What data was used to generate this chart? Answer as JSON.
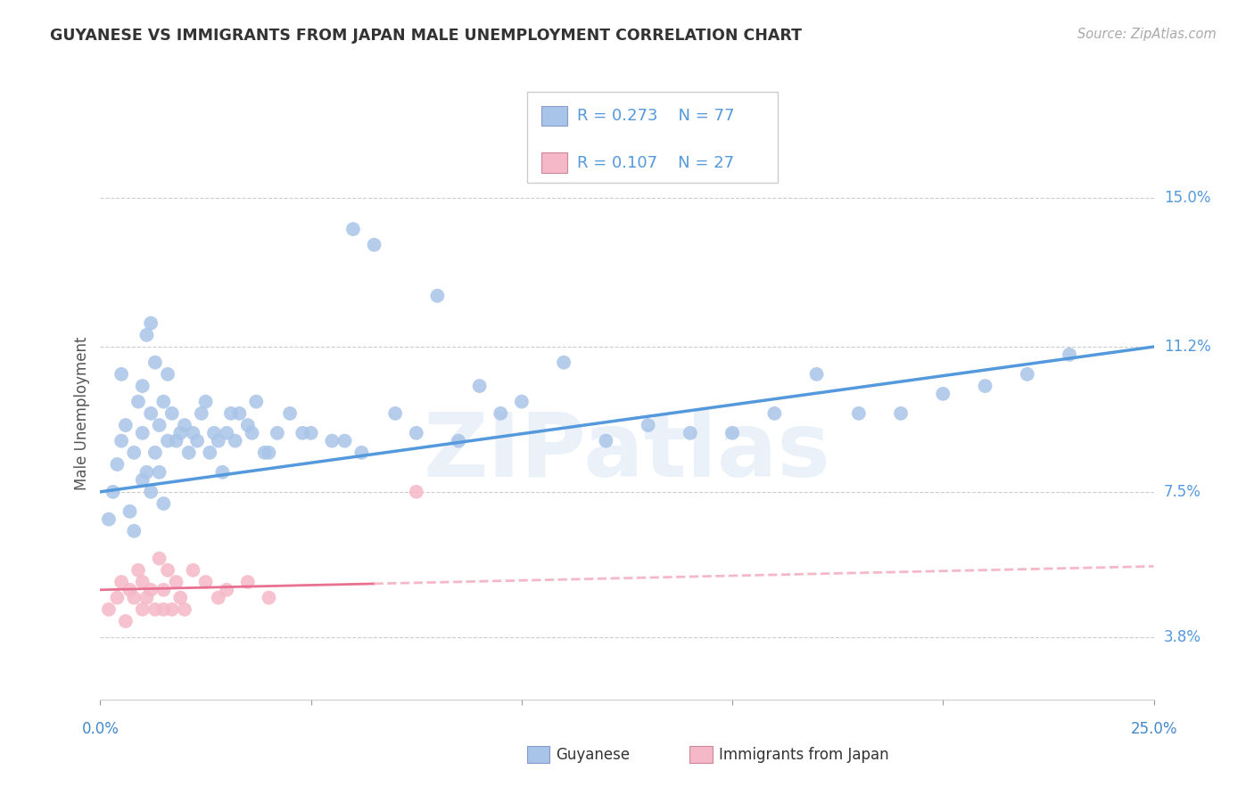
{
  "title": "GUYANESE VS IMMIGRANTS FROM JAPAN MALE UNEMPLOYMENT CORRELATION CHART",
  "source": "Source: ZipAtlas.com",
  "ylabel": "Male Unemployment",
  "ytick_labels": [
    "3.8%",
    "7.5%",
    "11.2%",
    "15.0%"
  ],
  "ytick_values": [
    3.8,
    7.5,
    11.2,
    15.0
  ],
  "xlim": [
    0.0,
    25.0
  ],
  "ylim": [
    2.2,
    16.8
  ],
  "watermark": "ZIPatlas",
  "legend_blue_R": "0.273",
  "legend_blue_N": "77",
  "legend_pink_R": "0.107",
  "legend_pink_N": "27",
  "legend_label_blue": "Guyanese",
  "legend_label_pink": "Immigrants from Japan",
  "blue_scatter_color": "#a8c4e8",
  "pink_scatter_color": "#f5b8c8",
  "line_blue_color": "#5599dd",
  "line_pink_solid_color": "#e87090",
  "line_pink_dashed_color": "#f5b8c8",
  "blue_line_y0": 7.5,
  "blue_line_y1": 11.2,
  "pink_line_y0": 5.0,
  "pink_line_y1": 5.6,
  "pink_solid_end_x": 6.5,
  "guyanese_x": [
    0.2,
    0.3,
    0.4,
    0.5,
    0.5,
    0.6,
    0.7,
    0.8,
    0.8,
    0.9,
    1.0,
    1.0,
    1.0,
    1.1,
    1.1,
    1.2,
    1.2,
    1.2,
    1.3,
    1.3,
    1.4,
    1.4,
    1.5,
    1.5,
    1.6,
    1.6,
    1.7,
    1.8,
    1.9,
    2.0,
    2.1,
    2.2,
    2.3,
    2.4,
    2.5,
    2.6,
    2.7,
    2.8,
    2.9,
    3.0,
    3.1,
    3.2,
    3.3,
    3.5,
    3.7,
    3.9,
    4.2,
    4.5,
    5.0,
    5.5,
    6.0,
    6.5,
    7.0,
    8.0,
    9.0,
    10.0,
    11.0,
    13.0,
    14.0,
    16.0,
    17.0,
    19.0,
    21.0,
    23.0,
    3.6,
    4.0,
    4.8,
    5.8,
    6.2,
    7.5,
    8.5,
    9.5,
    12.0,
    15.0,
    18.0,
    20.0,
    22.0
  ],
  "guyanese_y": [
    6.8,
    7.5,
    8.2,
    10.5,
    8.8,
    9.2,
    7.0,
    8.5,
    6.5,
    9.8,
    10.2,
    9.0,
    7.8,
    11.5,
    8.0,
    11.8,
    9.5,
    7.5,
    10.8,
    8.5,
    9.2,
    8.0,
    9.8,
    7.2,
    10.5,
    8.8,
    9.5,
    8.8,
    9.0,
    9.2,
    8.5,
    9.0,
    8.8,
    9.5,
    9.8,
    8.5,
    9.0,
    8.8,
    8.0,
    9.0,
    9.5,
    8.8,
    9.5,
    9.2,
    9.8,
    8.5,
    9.0,
    9.5,
    9.0,
    8.8,
    14.2,
    13.8,
    9.5,
    12.5,
    10.2,
    9.8,
    10.8,
    9.2,
    9.0,
    9.5,
    10.5,
    9.5,
    10.2,
    11.0,
    9.0,
    8.5,
    9.0,
    8.8,
    8.5,
    9.0,
    8.8,
    9.5,
    8.8,
    9.0,
    9.5,
    10.0,
    10.5
  ],
  "japan_x": [
    0.2,
    0.4,
    0.5,
    0.6,
    0.7,
    0.8,
    0.9,
    1.0,
    1.0,
    1.1,
    1.2,
    1.3,
    1.4,
    1.5,
    1.5,
    1.6,
    1.7,
    1.8,
    1.9,
    2.0,
    2.2,
    2.5,
    2.8,
    3.0,
    3.5,
    4.0,
    7.5
  ],
  "japan_y": [
    4.5,
    4.8,
    5.2,
    4.2,
    5.0,
    4.8,
    5.5,
    4.5,
    5.2,
    4.8,
    5.0,
    4.5,
    5.8,
    4.5,
    5.0,
    5.5,
    4.5,
    5.2,
    4.8,
    4.5,
    5.5,
    5.2,
    4.8,
    5.0,
    5.2,
    4.8,
    7.5
  ]
}
